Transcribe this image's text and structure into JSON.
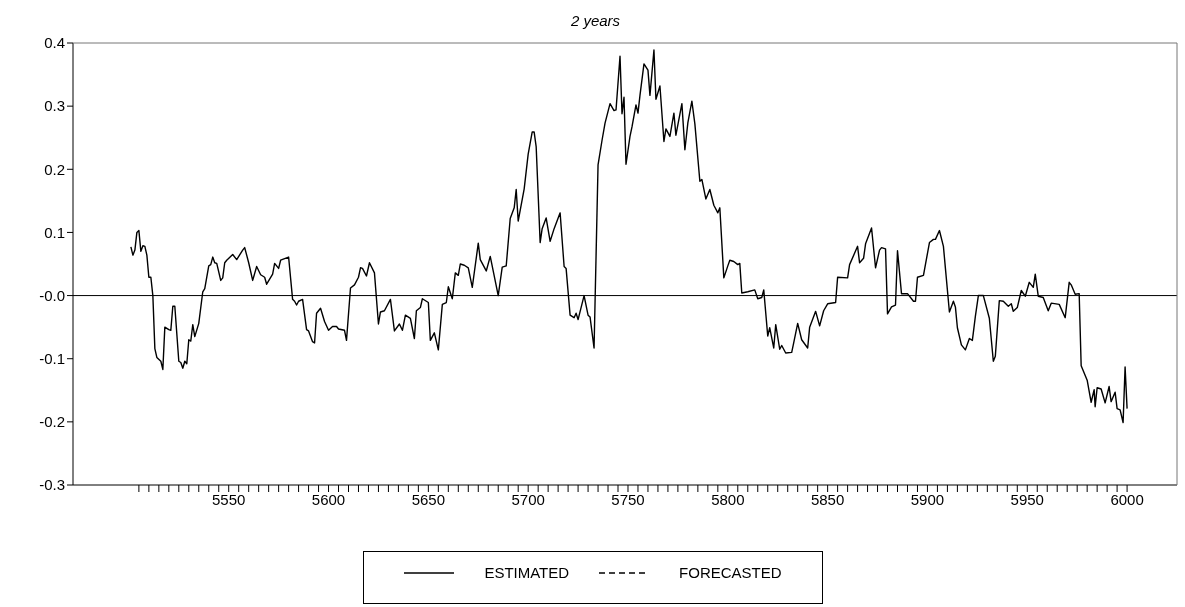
{
  "chart_data": {
    "type": "line",
    "title": "2 years",
    "x": [
      5501,
      5502,
      5503,
      5504,
      5505,
      5506,
      5507,
      5508,
      5509,
      5510,
      5511,
      5512,
      5513,
      5514,
      5516,
      5517,
      5518,
      5520,
      5521,
      5522,
      5523,
      5525,
      5526,
      5527,
      5528,
      5529,
      5530,
      5531,
      5532,
      5533,
      5535,
      5537,
      5538,
      5540,
      5541,
      5542,
      5543,
      5544,
      5546,
      5547,
      5548,
      5549,
      5552,
      5554,
      5557,
      5558,
      5560,
      5562,
      5564,
      5566,
      5568,
      5569,
      5572,
      5573,
      5575,
      5576,
      5580,
      5582,
      5583,
      5584,
      5585,
      5587,
      5589,
      5590,
      5592,
      5593,
      5594,
      5596,
      5598,
      5600,
      5602,
      5604,
      5605,
      5608,
      5609,
      5611,
      5613,
      5615,
      5616,
      5617,
      5619,
      5620.5,
      5623,
      5625,
      5626,
      5628,
      5631,
      5633,
      5635.5,
      5637,
      5638.5,
      5641,
      5643,
      5644,
      5646,
      5647,
      5650,
      5651,
      5653,
      5655,
      5657,
      5659,
      5660,
      5662,
      5663.5,
      5665,
      5666,
      5668,
      5670,
      5672,
      5675,
      5676,
      5679,
      5681,
      5685,
      5687,
      5689,
      5691,
      5693,
      5694,
      5695,
      5698,
      5700,
      5702,
      5703,
      5704,
      5706,
      5707,
      5709,
      5711,
      5713,
      5716,
      5718,
      5719,
      5721,
      5723,
      5724,
      5725,
      5728,
      5730,
      5731,
      5733,
      5735,
      5737,
      5738.5,
      5741,
      5743,
      5744,
      5746,
      5747,
      5748,
      5749,
      5751,
      5752,
      5754,
      5755,
      5756,
      5758,
      5760,
      5761,
      5763,
      5764,
      5766,
      5768,
      5769,
      5771,
      5773,
      5774,
      5777,
      5778.5,
      5780,
      5782,
      5783.5,
      5786,
      5787,
      5789,
      5791,
      5793,
      5795,
      5796,
      5798,
      5800,
      5801,
      5803,
      5805,
      5806,
      5807,
      5810,
      5813.5,
      5815,
      5817,
      5818,
      5820,
      5821,
      5823,
      5824,
      5826,
      5827,
      5829,
      5832,
      5833,
      5835,
      5837,
      5840,
      5841,
      5844,
      5846,
      5848,
      5850,
      5854,
      5855,
      5860,
      5861,
      5865,
      5866,
      5868,
      5869,
      5872,
      5874,
      5876,
      5877,
      5879,
      5880,
      5882,
      5884,
      5885,
      5887,
      5890,
      5893,
      5894,
      5895,
      5898,
      5901,
      5903,
      5904,
      5906,
      5908,
      5909,
      5911,
      5913,
      5914,
      5915,
      5917,
      5919,
      5921,
      5922.5,
      5924,
      5925.5,
      5928,
      5931,
      5933,
      5934,
      5936,
      5938,
      5940.5,
      5942,
      5943,
      5945,
      5947,
      5949,
      5951,
      5953,
      5954,
      5955.5,
      5958,
      5960.5,
      5962,
      5966,
      5969,
      5971,
      5972,
      5974,
      5976,
      5977,
      5980,
      5982,
      5983.5,
      5984,
      5985,
      5987,
      5989,
      5991,
      5992,
      5994,
      5995,
      5996.5,
      5998,
      5999,
      6000
    ],
    "series": [
      {
        "name": "ESTIMATED",
        "color": "#000000",
        "line_style": "solid",
        "values": [
          0.077,
          0.064,
          0.072,
          0.1,
          0.103,
          0.07,
          0.079,
          0.078,
          0.064,
          0.029,
          0.029,
          0.0,
          -0.084,
          -0.098,
          -0.104,
          -0.117,
          -0.05,
          -0.054,
          -0.055,
          -0.017,
          -0.017,
          -0.104,
          -0.106,
          -0.115,
          -0.104,
          -0.108,
          -0.07,
          -0.072,
          -0.046,
          -0.065,
          -0.044,
          0.006,
          0.011,
          0.047,
          0.049,
          0.061,
          0.052,
          0.051,
          0.024,
          0.028,
          0.052,
          0.056,
          0.065,
          0.057,
          0.072,
          0.076,
          0.052,
          0.024,
          0.046,
          0.033,
          0.029,
          0.018,
          0.034,
          0.051,
          0.043,
          0.056,
          0.061,
          -0.006,
          -0.009,
          -0.015,
          -0.009,
          -0.006,
          -0.054,
          -0.056,
          -0.073,
          -0.075,
          -0.028,
          -0.02,
          -0.041,
          -0.055,
          -0.049,
          -0.049,
          -0.053,
          -0.055,
          -0.071,
          0.012,
          0.017,
          0.029,
          0.044,
          0.043,
          0.031,
          0.052,
          0.036,
          -0.045,
          -0.026,
          -0.024,
          -0.006,
          -0.056,
          -0.045,
          -0.055,
          -0.031,
          -0.036,
          -0.068,
          -0.024,
          -0.019,
          -0.005,
          -0.011,
          -0.071,
          -0.059,
          -0.086,
          -0.014,
          -0.011,
          0.014,
          -0.005,
          0.036,
          0.032,
          0.05,
          0.048,
          0.044,
          0.013,
          0.083,
          0.057,
          0.039,
          0.062,
          0.0,
          0.045,
          0.047,
          0.122,
          0.139,
          0.168,
          0.118,
          0.169,
          0.224,
          0.259,
          0.259,
          0.236,
          0.084,
          0.106,
          0.123,
          0.086,
          0.106,
          0.131,
          0.046,
          0.043,
          -0.031,
          -0.035,
          -0.028,
          -0.038,
          0.0,
          -0.031,
          -0.034,
          -0.083,
          0.207,
          0.246,
          0.273,
          0.304,
          0.293,
          0.294,
          0.379,
          0.288,
          0.314,
          0.208,
          0.252,
          0.267,
          0.302,
          0.289,
          0.317,
          0.367,
          0.357,
          0.317,
          0.389,
          0.311,
          0.332,
          0.244,
          0.264,
          0.252,
          0.289,
          0.254,
          0.304,
          0.231,
          0.274,
          0.308,
          0.272,
          0.181,
          0.184,
          0.153,
          0.168,
          0.143,
          0.131,
          0.139,
          0.028,
          0.047,
          0.056,
          0.054,
          0.049,
          0.051,
          0.004,
          0.006,
          0.009,
          -0.005,
          -0.003,
          0.009,
          -0.064,
          -0.051,
          -0.083,
          -0.046,
          -0.085,
          -0.079,
          -0.091,
          -0.09,
          -0.075,
          -0.044,
          -0.07,
          -0.083,
          -0.05,
          -0.025,
          -0.048,
          -0.024,
          -0.013,
          -0.011,
          0.029,
          0.028,
          0.049,
          0.078,
          0.052,
          0.059,
          0.082,
          0.107,
          0.044,
          0.072,
          0.076,
          0.074,
          -0.029,
          -0.018,
          -0.015,
          0.071,
          0.003,
          0.003,
          -0.009,
          -0.009,
          0.029,
          0.032,
          0.084,
          0.089,
          0.089,
          0.103,
          0.078,
          0.043,
          -0.026,
          -0.009,
          -0.018,
          -0.051,
          -0.078,
          -0.086,
          -0.068,
          -0.071,
          -0.033,
          0.0,
          0.0,
          -0.036,
          -0.104,
          -0.096,
          -0.008,
          -0.009,
          -0.017,
          -0.013,
          -0.025,
          -0.019,
          0.008,
          -0.001,
          0.021,
          0.013,
          0.034,
          -0.001,
          -0.003,
          -0.024,
          -0.012,
          -0.014,
          -0.035,
          0.021,
          0.017,
          0.002,
          0.003,
          -0.111,
          -0.134,
          -0.169,
          -0.149,
          -0.176,
          -0.146,
          -0.148,
          -0.17,
          -0.144,
          -0.168,
          -0.153,
          -0.179,
          -0.181,
          -0.201,
          -0.113,
          -0.179
        ]
      },
      {
        "name": "FORECASTED",
        "color": "#000000",
        "line_style": "dashed",
        "values": [
          null,
          null,
          null,
          null,
          null,
          null,
          null,
          null,
          null,
          null,
          null,
          null,
          null,
          null,
          null,
          null,
          null,
          null,
          null,
          null,
          null,
          null,
          null,
          null,
          null,
          null,
          null,
          null,
          null,
          null,
          null,
          null,
          null,
          null,
          null,
          null,
          null,
          null,
          null,
          null,
          null,
          null,
          null,
          null,
          null,
          null,
          null,
          null,
          null,
          null,
          null,
          null,
          null,
          null,
          null,
          null,
          null,
          null,
          null,
          null,
          null,
          null,
          null,
          null,
          null,
          null,
          null,
          null,
          null,
          null,
          null,
          null,
          null,
          null,
          null,
          null,
          null,
          null,
          null,
          null,
          null,
          null,
          null,
          null,
          null,
          null,
          null,
          null,
          null,
          null,
          null,
          null,
          null,
          null,
          null,
          null,
          null,
          null,
          null,
          null,
          null,
          null,
          null,
          null,
          null,
          null,
          null,
          null,
          null,
          null,
          null,
          null,
          null,
          null,
          null,
          null,
          null,
          null,
          null,
          null,
          null,
          null,
          null,
          null,
          null,
          null,
          null,
          null,
          null,
          null,
          null,
          null,
          null,
          null,
          null,
          null,
          null,
          null,
          null,
          null,
          null,
          null,
          null,
          null,
          null,
          null,
          null,
          null,
          null,
          null,
          null,
          null,
          null,
          null,
          null,
          null,
          null,
          null,
          null,
          null,
          null,
          null,
          null,
          null,
          null,
          null,
          null,
          null,
          null,
          null,
          null,
          null,
          null,
          null,
          null,
          null,
          null,
          null,
          null,
          null,
          null,
          null,
          null,
          null,
          null,
          null,
          null,
          null,
          null,
          null,
          null,
          null,
          null,
          null,
          null,
          null,
          null,
          null,
          null,
          null,
          null,
          null,
          null,
          null,
          null,
          null,
          null,
          null,
          null,
          null,
          null,
          null,
          null,
          null,
          null,
          null,
          null,
          null,
          null,
          null,
          null,
          null,
          null,
          null,
          null,
          null,
          null,
          null,
          null,
          null,
          null,
          null,
          null,
          null,
          null,
          null,
          null,
          null,
          null,
          null,
          null,
          null,
          null,
          null,
          null,
          null,
          null,
          null,
          null,
          null,
          null,
          null,
          null,
          null,
          null,
          null,
          null,
          null,
          null,
          null,
          null,
          null,
          null,
          null,
          null,
          null,
          null,
          null,
          null,
          null,
          null,
          null,
          null,
          null,
          null,
          null,
          null,
          null,
          null,
          null,
          null,
          null,
          null,
          null,
          null,
          null,
          null,
          null,
          null
        ]
      }
    ],
    "xlim": [
      5472,
      6025
    ],
    "xticks": [
      {
        "value": 5505,
        "label": null
      },
      {
        "value": 5510,
        "label": null
      },
      {
        "value": 5515,
        "label": null
      },
      {
        "value": 5520,
        "label": null
      },
      {
        "value": 5525,
        "label": null
      },
      {
        "value": 5530,
        "label": null
      },
      {
        "value": 5535,
        "label": null
      },
      {
        "value": 5540,
        "label": null
      },
      {
        "value": 5545,
        "label": null
      },
      5550,
      {
        "value": 5555,
        "label": null
      },
      {
        "value": 5560,
        "label": null
      },
      {
        "value": 5565,
        "label": null
      },
      {
        "value": 5570,
        "label": null
      },
      {
        "value": 5575,
        "label": null
      },
      {
        "value": 5580,
        "label": null
      },
      {
        "value": 5585,
        "label": null
      },
      {
        "value": 5590,
        "label": null
      },
      {
        "value": 5595,
        "label": null
      },
      5600,
      {
        "value": 5605,
        "label": null
      },
      {
        "value": 5610,
        "label": null
      },
      {
        "value": 5615,
        "label": null
      },
      {
        "value": 5620,
        "label": null
      },
      {
        "value": 5625,
        "label": null
      },
      {
        "value": 5630,
        "label": null
      },
      {
        "value": 5635,
        "label": null
      },
      {
        "value": 5640,
        "label": null
      },
      {
        "value": 5645,
        "label": null
      },
      5650,
      {
        "value": 5655,
        "label": null
      },
      {
        "value": 5660,
        "label": null
      },
      {
        "value": 5665,
        "label": null
      },
      {
        "value": 5670,
        "label": null
      },
      {
        "value": 5675,
        "label": null
      },
      {
        "value": 5680,
        "label": null
      },
      {
        "value": 5685,
        "label": null
      },
      {
        "value": 5690,
        "label": null
      },
      {
        "value": 5695,
        "label": null
      },
      5700,
      {
        "value": 5705,
        "label": null
      },
      {
        "value": 5710,
        "label": null
      },
      {
        "value": 5715,
        "label": null
      },
      {
        "value": 5720,
        "label": null
      },
      {
        "value": 5725,
        "label": null
      },
      {
        "value": 5730,
        "label": null
      },
      {
        "value": 5735,
        "label": null
      },
      {
        "value": 5740,
        "label": null
      },
      {
        "value": 5745,
        "label": null
      },
      5750,
      {
        "value": 5755,
        "label": null
      },
      {
        "value": 5760,
        "label": null
      },
      {
        "value": 5765,
        "label": null
      },
      {
        "value": 5770,
        "label": null
      },
      {
        "value": 5775,
        "label": null
      },
      {
        "value": 5780,
        "label": null
      },
      {
        "value": 5785,
        "label": null
      },
      {
        "value": 5790,
        "label": null
      },
      {
        "value": 5795,
        "label": null
      },
      5800,
      {
        "value": 5805,
        "label": null
      },
      {
        "value": 5810,
        "label": null
      },
      {
        "value": 5815,
        "label": null
      },
      {
        "value": 5820,
        "label": null
      },
      {
        "value": 5825,
        "label": null
      },
      {
        "value": 5830,
        "label": null
      },
      {
        "value": 5835,
        "label": null
      },
      {
        "value": 5840,
        "label": null
      },
      {
        "value": 5845,
        "label": null
      },
      5850,
      {
        "value": 5855,
        "label": null
      },
      {
        "value": 5860,
        "label": null
      },
      {
        "value": 5865,
        "label": null
      },
      {
        "value": 5870,
        "label": null
      },
      {
        "value": 5875,
        "label": null
      },
      {
        "value": 5880,
        "label": null
      },
      {
        "value": 5885,
        "label": null
      },
      {
        "value": 5890,
        "label": null
      },
      {
        "value": 5895,
        "label": null
      },
      5900,
      {
        "value": 5905,
        "label": null
      },
      {
        "value": 5910,
        "label": null
      },
      {
        "value": 5915,
        "label": null
      },
      {
        "value": 5920,
        "label": null
      },
      {
        "value": 5925,
        "label": null
      },
      {
        "value": 5930,
        "label": null
      },
      {
        "value": 5935,
        "label": null
      },
      {
        "value": 5940,
        "label": null
      },
      {
        "value": 5945,
        "label": null
      },
      5950,
      {
        "value": 5955,
        "label": null
      },
      {
        "value": 5960,
        "label": null
      },
      {
        "value": 5965,
        "label": null
      },
      {
        "value": 5970,
        "label": null
      },
      {
        "value": 5975,
        "label": null
      },
      {
        "value": 5980,
        "label": null
      },
      {
        "value": 5985,
        "label": null
      },
      {
        "value": 5990,
        "label": null
      },
      {
        "value": 5995,
        "label": null
      },
      6000
    ],
    "ylim": [
      -0.3,
      0.4
    ],
    "yticks": [
      -0.3,
      -0.2,
      -0.1,
      {
        "value": 0,
        "label": "-0.0"
      },
      0.1,
      0.2,
      0.3,
      0.4
    ],
    "ref_lines": [
      {
        "axis": "y",
        "value": 0,
        "color": "#000000",
        "line_style": "solid"
      }
    ],
    "legend": "bottom",
    "marker": "none"
  }
}
